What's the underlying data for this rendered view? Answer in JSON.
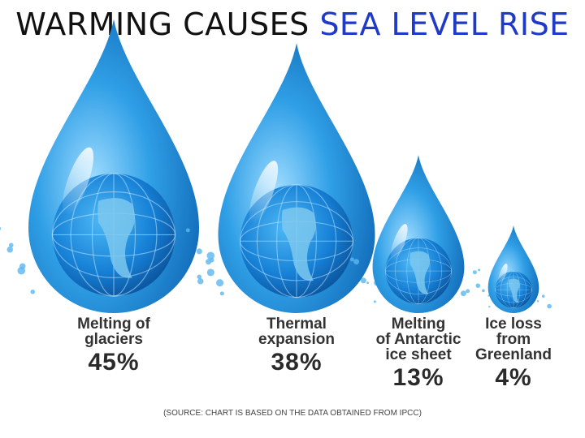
{
  "page": {
    "title_part1": "WARMING CAUSES ",
    "title_part2": "SEA LEVEL RISE",
    "source": "(SOURCE: CHART IS BASED ON THE DATA OBTAINED FROM IPCC)"
  },
  "colors": {
    "title": "#111111",
    "accent": "#1f39c9",
    "drop_light": "#9fdcff",
    "drop_mid": "#2f9fe6",
    "drop_dark": "#0b5fae",
    "globe_land": "#7cc8ef",
    "text": "#333333"
  },
  "chart_data": {
    "type": "bar",
    "title": "WARMING CAUSES SEA LEVEL RISE",
    "categories": [
      [
        "Melting of",
        "glaciers"
      ],
      [
        "Thermal",
        "expansion"
      ],
      [
        "Melting",
        "of Antarctic",
        "ice sheet"
      ],
      [
        "Ice loss",
        "from",
        "Greenland"
      ]
    ],
    "values": [
      45,
      38,
      13,
      4
    ],
    "value_labels": [
      "45%",
      "38%",
      "13%",
      "4%"
    ],
    "unit": "%",
    "xlabel": "",
    "ylabel": ""
  }
}
